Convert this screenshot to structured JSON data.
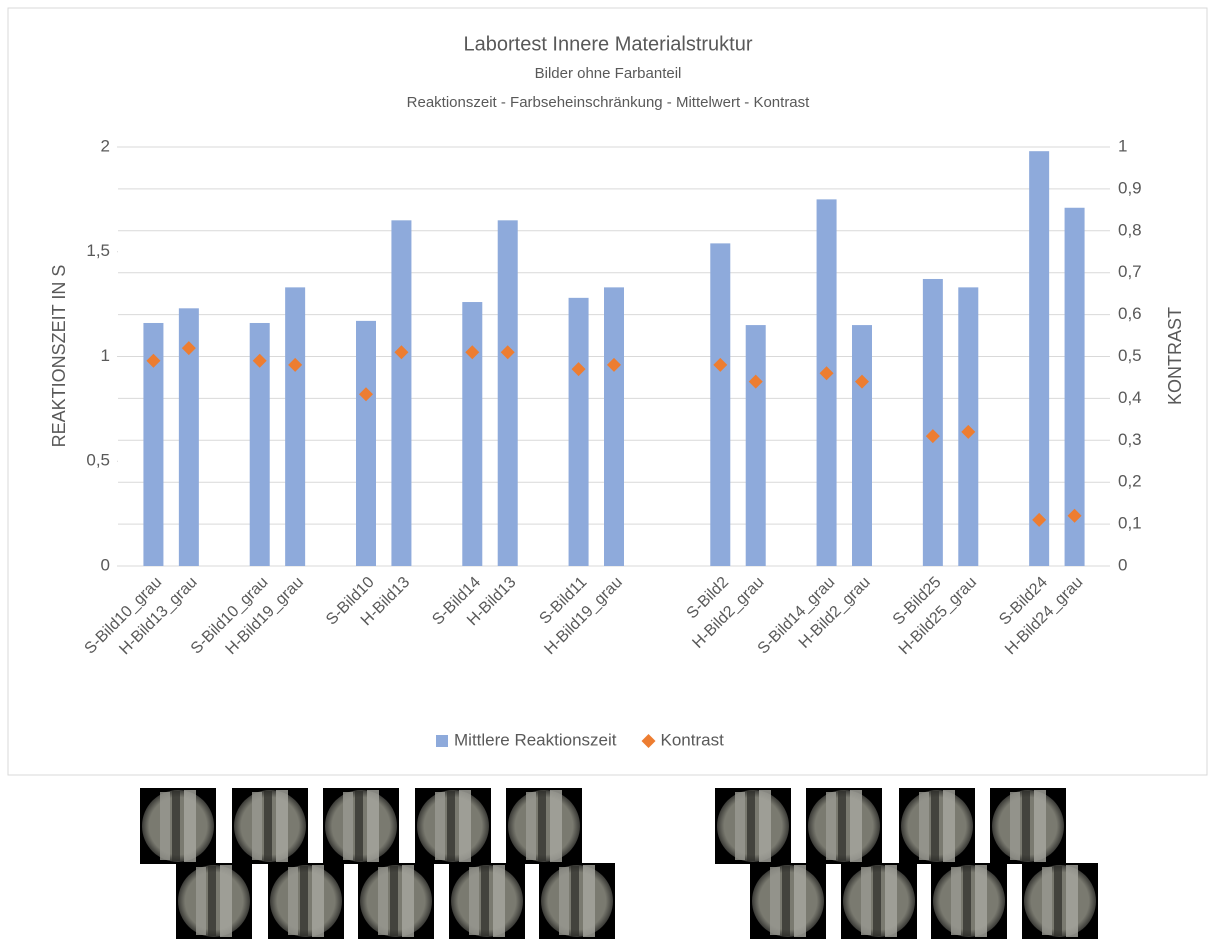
{
  "chart_data": {
    "type": "bar",
    "title": "Labortest Innere Materialstruktur",
    "subtitle": "Bilder ohne Farbanteil",
    "subtitle2": "Reaktionszeit - Farbseheinschränkung - Mittelwert - Kontrast",
    "y_label": "REAKTIONSZEIT IN S",
    "y2_label": "KONTRAST",
    "categories": [
      "S-Bild10_grau",
      "H-Bild13_grau",
      null,
      "S-Bild10_grau",
      "H-Bild19_grau",
      null,
      "S-Bild10",
      "H-Bild13",
      null,
      "S-Bild14",
      "H-Bild13",
      null,
      "S-Bild11",
      "H-Bild19_grau",
      null,
      null,
      "S-Bild2",
      "H-Bild2_grau",
      null,
      "S-Bild14_grau",
      "H-Bild2_grau",
      null,
      "S-Bild25",
      "H-Bild25_grau",
      null,
      "S-Bild24",
      "H-Bild24_grau"
    ],
    "series": [
      {
        "name": "Mittlere Reaktionszeit",
        "type": "bar",
        "color": "#8eaadb",
        "values": [
          1.16,
          1.23,
          null,
          1.16,
          1.33,
          null,
          1.17,
          1.65,
          null,
          1.26,
          1.65,
          null,
          1.28,
          1.33,
          null,
          null,
          1.54,
          1.15,
          null,
          1.75,
          1.15,
          null,
          1.37,
          1.33,
          null,
          1.98,
          1.71
        ]
      },
      {
        "name": "Kontrast",
        "type": "scatter",
        "axis": "y2",
        "color": "#ed7d31",
        "values": [
          0.49,
          0.52,
          null,
          0.49,
          0.48,
          null,
          0.41,
          0.51,
          null,
          0.51,
          0.51,
          null,
          0.47,
          0.48,
          null,
          null,
          0.48,
          0.44,
          null,
          0.46,
          0.44,
          null,
          0.31,
          0.32,
          null,
          0.11,
          0.12
        ]
      }
    ],
    "ylim": [
      0,
      2
    ],
    "yticks": [
      0,
      {
        "value": 0.5,
        "label": "0,5"
      },
      1,
      {
        "value": 1.5,
        "label": "1,5"
      },
      2
    ],
    "y2lim": [
      0,
      1
    ],
    "y2ticks": [
      0,
      {
        "value": 0.1,
        "label": "0,1"
      },
      {
        "value": 0.2,
        "label": "0,2"
      },
      {
        "value": 0.3,
        "label": "0,3"
      },
      {
        "value": 0.4,
        "label": "0,4"
      },
      {
        "value": 0.5,
        "label": "0,5"
      },
      {
        "value": 0.6,
        "label": "0,6"
      },
      {
        "value": 0.7,
        "label": "0,7"
      },
      {
        "value": 0.8,
        "label": "0,8"
      },
      {
        "value": 0.9,
        "label": "0,9"
      },
      1
    ],
    "grid": true,
    "legend": "bottom"
  }
}
